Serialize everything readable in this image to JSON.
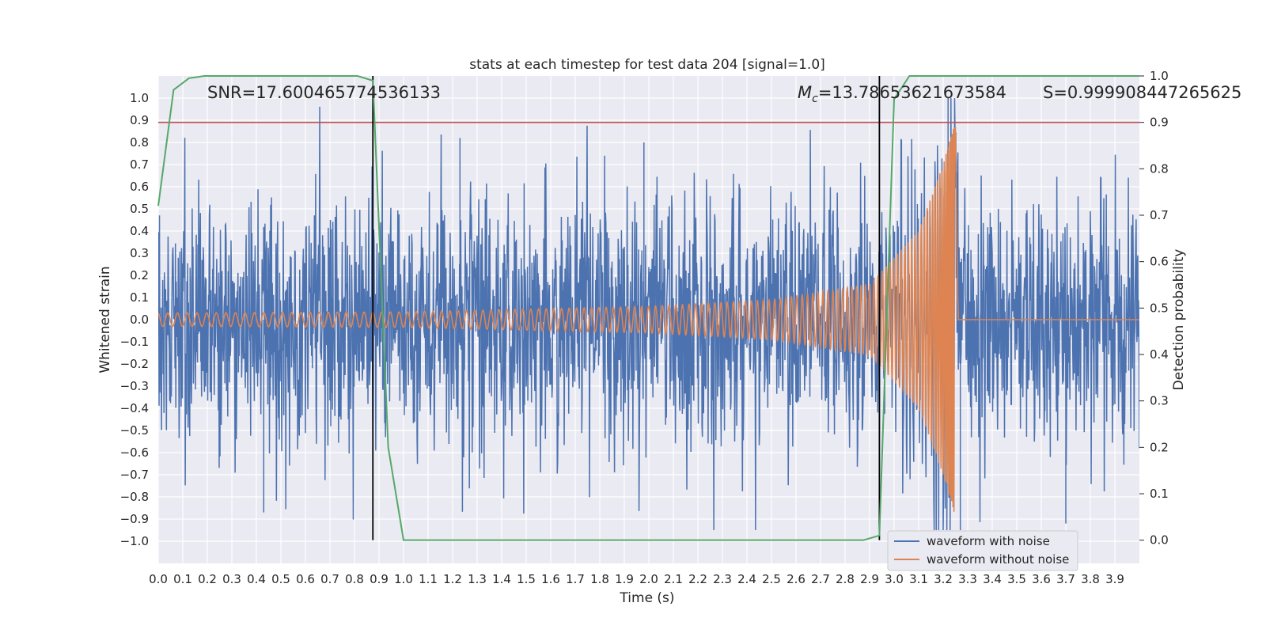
{
  "chart_data": {
    "type": "line",
    "title": "stats at each timestep for test data 204 [signal=1.0]",
    "xlabel": "Time (s)",
    "ylabel": "Whitened strain",
    "y2label": "Detection probability",
    "xlim": [
      0.0,
      4.0
    ],
    "ylim": [
      -1.1,
      1.1
    ],
    "y2lim": [
      -0.05,
      1.0
    ],
    "x_ticks": [
      "0.0",
      "0.1",
      "0.2",
      "0.3",
      "0.4",
      "0.5",
      "0.6",
      "0.7",
      "0.8",
      "0.9",
      "1.0",
      "1.1",
      "1.2",
      "1.3",
      "1.4",
      "1.5",
      "1.6",
      "1.7",
      "1.8",
      "1.9",
      "2.0",
      "2.1",
      "2.2",
      "2.3",
      "2.4",
      "2.5",
      "2.6",
      "2.7",
      "2.8",
      "2.9",
      "3.0",
      "3.1",
      "3.2",
      "3.3",
      "3.4",
      "3.5",
      "3.6",
      "3.7",
      "3.8",
      "3.9"
    ],
    "y_ticks": [
      "1.0",
      "0.9",
      "0.8",
      "0.7",
      "0.6",
      "0.5",
      "0.4",
      "0.3",
      "0.2",
      "0.1",
      "0.0",
      "−0.1",
      "−0.2",
      "−0.3",
      "−0.4",
      "−0.5",
      "−0.6",
      "−0.7",
      "−0.8",
      "−0.9",
      "−1.0"
    ],
    "y2_ticks": [
      "1.0",
      "0.9",
      "0.8",
      "0.7",
      "0.6",
      "0.5",
      "0.4",
      "0.3",
      "0.2",
      "0.1",
      "0.0"
    ],
    "annotations": {
      "snr": "SNR=17.600465774536133",
      "mc_symbol": "M",
      "mc_sub": "c",
      "mc_value": "=13.78653621673584",
      "s": "S=0.999908447265625"
    },
    "threshold": {
      "axis": "y2",
      "value": 0.9,
      "color": "#c44e52"
    },
    "vlines": [
      {
        "x": 0.875,
        "y2_from": 0.0,
        "y2_to": 1.0,
        "color": "#000000"
      },
      {
        "x": 2.94,
        "y2_from": 0.0,
        "y2_to": 1.0,
        "color": "#000000"
      }
    ],
    "series": [
      {
        "name": "waveform with noise",
        "color": "#4c72b0",
        "axis": "y",
        "kind": "noise",
        "approx_std": 0.28,
        "approx_range": [
          -0.95,
          1.0
        ],
        "notable_peaks": [
          [
            1.23,
            0.82
          ],
          [
            1.98,
            0.8
          ],
          [
            3.22,
            1.0
          ],
          [
            3.27,
            -0.95
          ],
          [
            0.43,
            -0.87
          ],
          [
            3.7,
            -0.92
          ]
        ]
      },
      {
        "name": "waveform without noise",
        "color": "#dd8452",
        "axis": "y",
        "kind": "chirp",
        "merger_time": 3.25,
        "early_amplitude": 0.03,
        "amplitude_at": [
          [
            0.0,
            0.03
          ],
          [
            1.0,
            0.035
          ],
          [
            2.0,
            0.06
          ],
          [
            2.5,
            0.09
          ],
          [
            2.9,
            0.16
          ],
          [
            3.1,
            0.4
          ],
          [
            3.2,
            0.7
          ],
          [
            3.25,
            0.9
          ],
          [
            3.27,
            0.0
          ]
        ],
        "peak_range": [
          -0.8,
          0.9
        ]
      },
      {
        "name": "detection probability",
        "color": "#55a868",
        "axis": "y2",
        "x": [
          0.0,
          0.0625,
          0.125,
          0.1875,
          0.25,
          0.3125,
          0.375,
          0.4375,
          0.5,
          0.5625,
          0.625,
          0.6875,
          0.75,
          0.8125,
          0.875,
          0.9375,
          1.0,
          1.0625,
          1.125,
          1.5,
          2.0,
          2.5,
          2.8125,
          2.875,
          2.94,
          3.0,
          3.0625,
          3.125,
          3.1875,
          3.25,
          3.5,
          4.0
        ],
        "values": [
          0.72,
          0.97,
          0.995,
          1.0,
          1.0,
          1.0,
          1.0,
          1.0,
          1.0,
          1.0,
          1.0,
          1.0,
          1.0,
          1.0,
          0.99,
          0.2,
          0.0,
          0.0,
          0.0,
          0.0,
          0.0,
          0.0,
          0.0,
          0.0,
          0.01,
          0.95,
          1.0,
          1.0,
          1.0,
          1.0,
          1.0,
          1.0
        ]
      }
    ],
    "legend": {
      "placement": "lower-right",
      "entries": [
        {
          "label": "waveform with noise",
          "color": "#4c72b0"
        },
        {
          "label": "waveform without noise",
          "color": "#dd8452"
        }
      ]
    },
    "grid": true,
    "style": {
      "axes_bg": "#eaeaf2",
      "grid_color": "#ffffff"
    }
  }
}
